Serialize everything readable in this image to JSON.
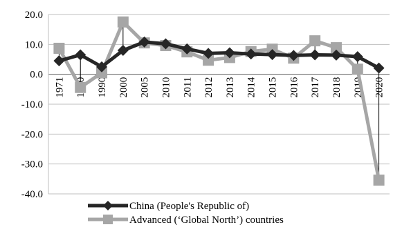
{
  "chart_data": {
    "type": "line",
    "title": "",
    "xlabel": "",
    "ylabel": "",
    "ylim": [
      -40,
      20
    ],
    "yticks": [
      "20.0",
      "10.0",
      "0.0",
      "-10.0",
      "-20.0",
      "-30.0",
      "-40.0"
    ],
    "ytick_values": [
      20,
      10,
      0,
      -10,
      -20,
      -30,
      -40
    ],
    "categories": [
      "1971",
      "1980",
      "1990",
      "2000",
      "2005",
      "2010",
      "2011",
      "2012",
      "2013",
      "2014",
      "2015",
      "2016",
      "2017",
      "2018",
      "2019",
      "2020"
    ],
    "grid": "horizontal",
    "legend_position": "bottom",
    "series": [
      {
        "name": "China (People's Republic of)",
        "color": "#262626",
        "marker": "diamond",
        "values": [
          4.5,
          6.5,
          2.5,
          8.0,
          10.8,
          10.2,
          8.5,
          7.0,
          7.2,
          6.8,
          6.6,
          6.3,
          6.5,
          6.4,
          5.9,
          2.1
        ]
      },
      {
        "name": "Advanced (‘Global North’) countries",
        "color": "#a6a6a6",
        "marker": "square",
        "values": [
          8.7,
          -4.4,
          0.5,
          17.5,
          10.5,
          9.6,
          7.5,
          4.7,
          5.6,
          7.6,
          8.4,
          5.4,
          11.2,
          8.9,
          1.7,
          -35.4
        ]
      }
    ]
  }
}
